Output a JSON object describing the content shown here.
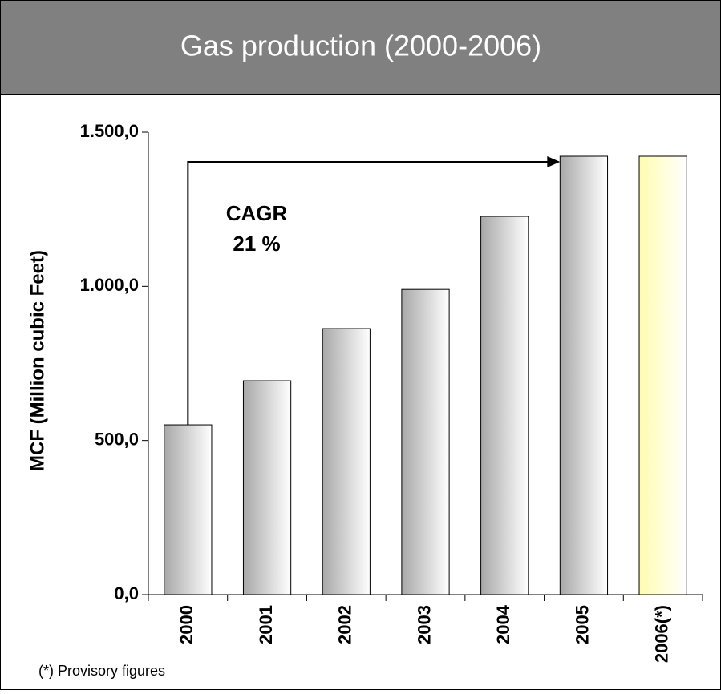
{
  "chart_data": {
    "type": "bar",
    "title": "Gas production (2000-2006)",
    "y_label": "MCF (Million cubic Feet)",
    "categories": [
      "2000",
      "2001",
      "2002",
      "2003",
      "2004",
      "2005",
      "2006(*)"
    ],
    "values": [
      551,
      694,
      863,
      990,
      1227,
      1422,
      1422
    ],
    "colors": [
      "#a8a8a8",
      "#a8a8a8",
      "#a8a8a8",
      "#a8a8a8",
      "#a8a8a8",
      "#a8a8a8",
      "#fffcb0"
    ],
    "ylim": [
      0,
      1500
    ],
    "yticks": [
      {
        "value": 0,
        "label": "0,0"
      },
      {
        "value": 500,
        "label": "500,0"
      },
      {
        "value": 1000,
        "label": "1.000,0"
      },
      {
        "value": 1500,
        "label": "1.500,0"
      }
    ],
    "annotation": [
      "CAGR",
      "21 %"
    ],
    "footnote": "(*) Provisory figures"
  }
}
